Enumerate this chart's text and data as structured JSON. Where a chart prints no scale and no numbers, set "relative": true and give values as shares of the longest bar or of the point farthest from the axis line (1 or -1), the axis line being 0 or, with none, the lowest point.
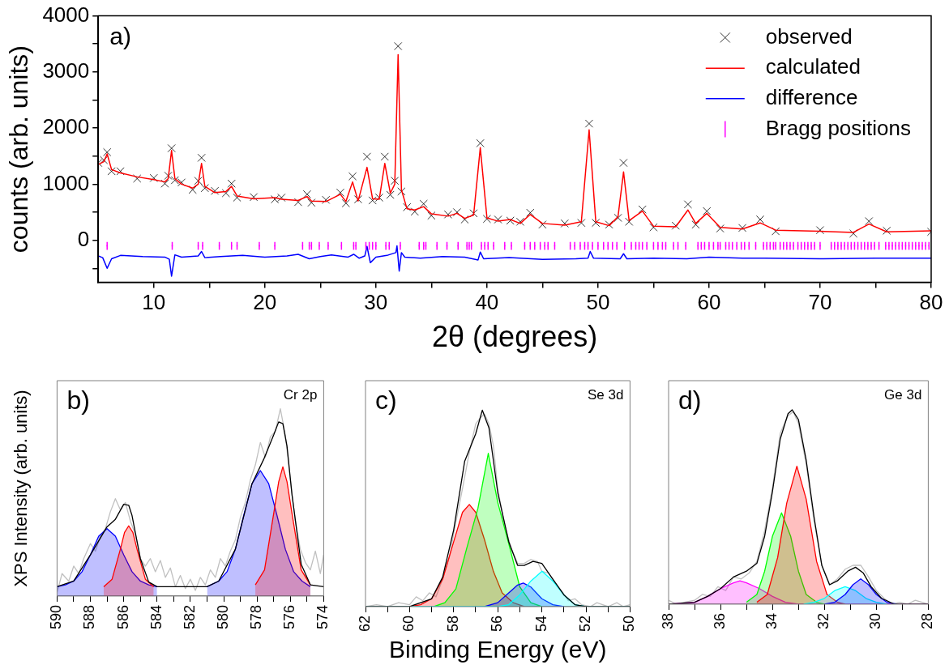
{
  "chart_data": [
    {
      "type": "line",
      "xlabel": "2θ (degrees)",
      "ylabel": "counts (arb. units)",
      "legend": "top right",
      "annotations": [
        "a)"
      ],
      "xlim": [
        5,
        80
      ],
      "xticks": [
        10,
        {
          "value": 15,
          "label": null
        },
        20,
        {
          "value": 25,
          "label": null
        },
        30,
        {
          "value": 35,
          "label": null
        },
        40,
        {
          "value": 45,
          "label": null
        },
        50,
        {
          "value": 55,
          "label": null
        },
        60,
        {
          "value": 65,
          "label": null
        },
        70,
        {
          "value": 75,
          "label": null
        },
        80
      ],
      "ylim": [
        -750,
        4000
      ],
      "yticks": [
        {
          "value": -500,
          "label": null
        },
        0,
        {
          "value": 500,
          "label": null
        },
        1000,
        {
          "value": 1500,
          "label": null
        },
        2000,
        {
          "value": 2500,
          "label": null
        },
        3000,
        {
          "value": 3500,
          "label": null
        },
        4000
      ],
      "x": [
        5,
        5.5,
        5.8,
        6.2,
        7,
        8.5,
        10,
        11,
        11.3,
        11.6,
        11.9,
        12.5,
        13.5,
        14.0,
        14.3,
        14.6,
        15.5,
        16.5,
        17.0,
        17.5,
        19,
        20.9,
        21.5,
        23,
        23.8,
        24.2,
        25.5,
        26.8,
        27.3,
        27.9,
        28.4,
        29.2,
        29.7,
        30.3,
        30.8,
        31.3,
        31.7,
        32.0,
        32.3,
        32.8,
        33.5,
        34.3,
        35,
        36.5,
        37.3,
        38,
        38.8,
        39.4,
        40,
        41,
        42.1,
        43,
        43.9,
        45,
        47,
        48.5,
        49.2,
        49.8,
        51,
        51.8,
        52.3,
        52.8,
        54.0,
        55,
        57,
        58.1,
        58.8,
        59.8,
        61,
        63,
        64.6,
        66,
        70,
        73,
        74.4,
        76,
        80
      ],
      "series": [
        {
          "name": "observed",
          "type": "scatter",
          "marker": "cross",
          "color": "#000000",
          "values": [
            1380,
            1430,
            1570,
            1230,
            1230,
            1100,
            1110,
            1010,
            1150,
            1640,
            1070,
            1030,
            900,
            1060,
            1470,
            930,
            880,
            840,
            1010,
            760,
            770,
            730,
            760,
            680,
            820,
            670,
            720,
            850,
            660,
            1140,
            730,
            1490,
            710,
            760,
            1490,
            810,
            1060,
            3460,
            870,
            590,
            510,
            650,
            440,
            460,
            500,
            370,
            480,
            1730,
            380,
            370,
            350,
            330,
            490,
            280,
            300,
            310,
            2080,
            310,
            280,
            400,
            1380,
            330,
            550,
            230,
            260,
            640,
            280,
            520,
            210,
            220,
            370,
            160,
            180,
            120,
            340,
            170,
            150
          ]
        },
        {
          "name": "calculated",
          "type": "line",
          "color": "#ff0000",
          "values": [
            1350,
            1400,
            1540,
            1260,
            1200,
            1130,
            1080,
            1040,
            1100,
            1600,
            1100,
            1000,
            930,
            1000,
            1370,
            960,
            850,
            870,
            960,
            790,
            740,
            760,
            730,
            710,
            780,
            700,
            690,
            820,
            690,
            1040,
            700,
            1300,
            740,
            730,
            1370,
            840,
            1000,
            3310,
            900,
            560,
            540,
            600,
            470,
            430,
            480,
            390,
            450,
            1650,
            400,
            340,
            370,
            300,
            460,
            300,
            270,
            330,
            1970,
            330,
            260,
            420,
            1220,
            350,
            520,
            250,
            240,
            540,
            300,
            480,
            230,
            200,
            310,
            180,
            160,
            140,
            290,
            150,
            170
          ]
        },
        {
          "name": "difference",
          "type": "line",
          "color": "#0000ff",
          "x": [
            5,
            5.4,
            5.8,
            6.2,
            7,
            9,
            11,
            11.4,
            11.6,
            11.9,
            12.5,
            14,
            14.3,
            14.6,
            16,
            18,
            20,
            22,
            23,
            24,
            25,
            26,
            27.5,
            28,
            28.5,
            29,
            29.2,
            29.5,
            30,
            31,
            31.8,
            31.9,
            32.1,
            32.3,
            32.6,
            34,
            36,
            38,
            39.2,
            39.4,
            39.7,
            42,
            45,
            48,
            49.1,
            49.3,
            49.6,
            52,
            52.3,
            52.6,
            55,
            58,
            60,
            63,
            65,
            70,
            75,
            80
          ],
          "values": [
            -280,
            -310,
            -500,
            -330,
            -270,
            -290,
            -300,
            -340,
            -640,
            -260,
            -300,
            -280,
            -200,
            -310,
            -290,
            -270,
            -300,
            -280,
            -250,
            -330,
            -290,
            -260,
            -300,
            -250,
            -320,
            -280,
            -110,
            -400,
            -300,
            -270,
            -220,
            -100,
            -550,
            -220,
            -300,
            -320,
            -290,
            -300,
            -350,
            -210,
            -330,
            -310,
            -340,
            -330,
            -320,
            -200,
            -320,
            -330,
            -240,
            -330,
            -320,
            -330,
            -300,
            -320,
            -320,
            -330,
            -320,
            -320
          ]
        },
        {
          "name": "Bragg positions",
          "type": "scatter",
          "marker": "square",
          "color": "#ff00ff",
          "errors": [
            70,
            70,
            70,
            70,
            70,
            70,
            70,
            70,
            70,
            70,
            70,
            70,
            70,
            70,
            70,
            70,
            70,
            70,
            70,
            70,
            70,
            70,
            70,
            70,
            70,
            70,
            70,
            70,
            70,
            70,
            70,
            70,
            70,
            70,
            70,
            70,
            70,
            70,
            70,
            70,
            70,
            70,
            70,
            70,
            70,
            70,
            70,
            70,
            70,
            70,
            70,
            70,
            70,
            70,
            70,
            70,
            70,
            70,
            70,
            70,
            70,
            70,
            70,
            70,
            70,
            70,
            70,
            70,
            70,
            70,
            70,
            70,
            70,
            70,
            70,
            70,
            70,
            70,
            70,
            70,
            70,
            70,
            70,
            70,
            70,
            70,
            70,
            70,
            70,
            70,
            70,
            70,
            70,
            70,
            70,
            70,
            70,
            70,
            70,
            70,
            70,
            70,
            70,
            70,
            70,
            70,
            70,
            70,
            70,
            70,
            70,
            70,
            70,
            70,
            70,
            70,
            70,
            70,
            70,
            70,
            70,
            70,
            70,
            70,
            70,
            70,
            70,
            70,
            70,
            70,
            70
          ],
          "x": [
            5.8,
            11.66,
            14.0,
            14.4,
            15.9,
            17.0,
            17.5,
            19.5,
            20.9,
            23.4,
            24.0,
            24.2,
            24.9,
            25.7,
            26.9,
            28.0,
            28.2,
            29.1,
            29.4,
            29.7,
            30.0,
            30.9,
            31.2,
            32.2,
            33.9,
            34.3,
            34.5,
            35.5,
            36.4,
            37.4,
            38.2,
            38.4,
            38.6,
            39.5,
            39.8,
            40.1,
            40.6,
            41.6,
            42.2,
            43.4,
            43.9,
            44.3,
            44.8,
            45.2,
            45.5,
            46.1,
            47.5,
            47.9,
            48.4,
            48.8,
            49.1,
            49.5,
            50.0,
            50.5,
            50.9,
            51.3,
            51.7,
            52.4,
            53.0,
            53.4,
            53.7,
            54.0,
            54.4,
            55.0,
            55.4,
            55.8,
            56.1,
            56.8,
            57.2,
            57.9,
            59.0,
            59.3,
            59.6,
            60.0,
            60.4,
            60.8,
            61.0,
            61.5,
            61.8,
            62.1,
            62.5,
            62.9,
            63.2,
            63.6,
            64.2,
            64.9,
            65.2,
            65.5,
            65.8,
            66.0,
            66.4,
            66.7,
            67.0,
            67.3,
            67.6,
            68.0,
            68.3,
            68.6,
            68.9,
            69.2,
            69.5,
            70.0,
            71.0,
            71.3,
            71.6,
            71.9,
            72.2,
            72.5,
            72.8,
            73.1,
            73.4,
            73.7,
            74.0,
            74.3,
            74.6,
            74.9,
            75.3,
            75.9,
            76.2,
            76.5,
            76.8,
            77.1,
            77.4,
            77.7,
            78.0,
            78.3,
            78.6,
            78.9,
            79.2,
            79.5,
            79.8
          ],
          "values": [
            -100,
            -100,
            -100,
            -100,
            -100,
            -100,
            -100,
            -100,
            -100,
            -100,
            -100,
            -100,
            -100,
            -100,
            -100,
            -100,
            -100,
            -100,
            -100,
            -100,
            -100,
            -100,
            -100,
            -100,
            -100,
            -100,
            -100,
            -100,
            -100,
            -100,
            -100,
            -100,
            -100,
            -100,
            -100,
            -100,
            -100,
            -100,
            -100,
            -100,
            -100,
            -100,
            -100,
            -100,
            -100,
            -100,
            -100,
            -100,
            -100,
            -100,
            -100,
            -100,
            -100,
            -100,
            -100,
            -100,
            -100,
            -100,
            -100,
            -100,
            -100,
            -100,
            -100,
            -100,
            -100,
            -100,
            -100,
            -100,
            -100,
            -100,
            -100,
            -100,
            -100,
            -100,
            -100,
            -100,
            -100,
            -100,
            -100,
            -100,
            -100,
            -100,
            -100,
            -100,
            -100,
            -100,
            -100,
            -100,
            -100,
            -100,
            -100,
            -100,
            -100,
            -100,
            -100,
            -100,
            -100,
            -100,
            -100,
            -100,
            -100,
            -100,
            -100,
            -100,
            -100,
            -100,
            -100,
            -100,
            -100,
            -100,
            -100,
            -100,
            -100,
            -100,
            -100,
            -100,
            -100,
            -100,
            -100,
            -100,
            -100,
            -100,
            -100,
            -100,
            -100,
            -100,
            -100,
            -100,
            -100,
            -100,
            -100
          ]
        }
      ]
    },
    {
      "type": "line",
      "relative": true,
      "tick_labels": "x",
      "ylabel": "XPS Intensity (arb. units)",
      "annotations": [
        "b)",
        "Cr 2p"
      ],
      "xlim": [
        590,
        574
      ],
      "xticks": [
        590,
        {
          "value": 589,
          "label": null
        },
        588,
        {
          "value": 587,
          "label": null
        },
        586,
        {
          "value": 585,
          "label": null
        },
        584,
        {
          "value": 583,
          "label": null
        },
        582,
        {
          "value": 581,
          "label": null
        },
        580,
        {
          "value": 579,
          "label": null
        },
        578,
        {
          "value": 577,
          "label": null
        },
        576,
        {
          "value": 575,
          "label": null
        },
        574
      ],
      "series": [
        {
          "type": "line",
          "color": "#c0c0c0",
          "x": [
            590,
            589.7,
            589.3,
            589,
            588.7,
            588.4,
            588,
            587.7,
            587.4,
            587.1,
            586.8,
            586.5,
            586.2,
            585.9,
            585.6,
            585.3,
            585,
            584.7,
            584.4,
            584.1,
            583.8,
            583.5,
            583.2,
            582.9,
            582.6,
            582.3,
            582,
            581.7,
            581.4,
            581.1,
            580.8,
            580.5,
            580.2,
            579.9,
            579.6,
            579.3,
            579,
            578.7,
            578.4,
            578.1,
            577.8,
            577.5,
            577.2,
            576.9,
            576.6,
            576.3,
            576,
            575.7,
            575.4,
            575.1,
            574.8,
            574.5,
            574.2,
            574
          ],
          "values": [
            0.02,
            0.12,
            0.08,
            0.16,
            0.12,
            0.2,
            0.28,
            0.24,
            0.32,
            0.36,
            0.45,
            0.52,
            0.46,
            0.5,
            0.4,
            0.33,
            0.2,
            0.16,
            0.2,
            0.13,
            0.19,
            0.1,
            0.15,
            0.05,
            0.11,
            0.04,
            0.09,
            0.03,
            0.1,
            0.06,
            0.14,
            0.1,
            0.2,
            0.16,
            0.24,
            0.3,
            0.42,
            0.5,
            0.62,
            0.7,
            0.82,
            0.74,
            0.85,
            0.88,
            1.0,
            0.86,
            0.62,
            0.4,
            0.25,
            0.18,
            0.14,
            0.24,
            0.12,
            0.22
          ]
        },
        {
          "type": "area",
          "color": "#0000ff",
          "x": [
            590,
            589.5,
            589,
            588.5,
            588,
            587.5,
            587,
            586.5,
            586,
            585.5,
            585,
            584.5,
            584
          ],
          "values": [
            0.05,
            0.06,
            0.08,
            0.13,
            0.22,
            0.32,
            0.36,
            0.32,
            0.22,
            0.13,
            0.08,
            0.06,
            0.05
          ]
        },
        {
          "type": "area",
          "color": "#ff0000",
          "x": [
            587.2,
            586.7,
            586.2,
            585.95,
            585.7,
            585.45,
            585.2,
            584.7,
            584.2
          ],
          "values": [
            0.05,
            0.09,
            0.25,
            0.34,
            0.375,
            0.34,
            0.25,
            0.09,
            0.05
          ]
        },
        {
          "type": "area",
          "color": "#0000ff",
          "x": [
            581,
            580.3,
            579.8,
            579.3,
            578.8,
            578.3,
            577.8,
            577.3,
            576.8,
            576.3,
            575.8,
            575.3,
            574.8
          ],
          "values": [
            0.05,
            0.08,
            0.13,
            0.25,
            0.43,
            0.6,
            0.67,
            0.6,
            0.43,
            0.25,
            0.13,
            0.08,
            0.05
          ]
        },
        {
          "type": "area",
          "color": "#ff0000",
          "x": [
            578.1,
            577.55,
            577,
            576.7,
            576.45,
            576.2,
            575.9,
            575.35,
            574.8
          ],
          "values": [
            0.06,
            0.14,
            0.44,
            0.61,
            0.69,
            0.61,
            0.44,
            0.14,
            0.06
          ]
        },
        {
          "type": "line",
          "color": "#000000",
          "x": [
            590,
            589,
            588,
            587,
            586.5,
            586,
            585.7,
            585.5,
            585,
            584.5,
            584,
            581,
            580.3,
            579.3,
            578.3,
            577.6,
            577,
            576.7,
            576.45,
            576.2,
            575.9,
            575.35,
            574.8,
            574
          ],
          "values": [
            0.05,
            0.08,
            0.22,
            0.37,
            0.41,
            0.49,
            0.485,
            0.43,
            0.2,
            0.075,
            0.05,
            0.05,
            0.08,
            0.25,
            0.6,
            0.73,
            0.86,
            0.93,
            0.92,
            0.8,
            0.54,
            0.17,
            0.06,
            0.05
          ]
        }
      ]
    },
    {
      "type": "line",
      "relative": true,
      "tick_labels": "x",
      "xlabel": "Binding Energy (eV)",
      "annotations": [
        "c)",
        "Se 3d"
      ],
      "xlim": [
        62,
        50
      ],
      "xticks": [
        62,
        {
          "value": 61,
          "label": null
        },
        60,
        {
          "value": 59,
          "label": null
        },
        58,
        {
          "value": 57,
          "label": null
        },
        56,
        {
          "value": 55,
          "label": null
        },
        54,
        {
          "value": 53,
          "label": null
        },
        52,
        {
          "value": 51,
          "label": null
        },
        50
      ],
      "series": [
        {
          "type": "line",
          "color": "#c0c0c0",
          "x": [
            62,
            61.5,
            61,
            60.5,
            60,
            59.7,
            59.4,
            59.1,
            58.8,
            58.5,
            58.2,
            57.9,
            57.6,
            57.3,
            57,
            56.8,
            56.6,
            56.4,
            56.2,
            56,
            55.7,
            55.4,
            55.1,
            54.8,
            54.5,
            54.2,
            54,
            53.7,
            53.4,
            53.1,
            52.8,
            52.5,
            52.2,
            51.8,
            51.5,
            51,
            50.6,
            50.3,
            50
          ],
          "values": [
            0,
            0.01,
            0,
            0.02,
            0.01,
            0.05,
            0.03,
            0.07,
            0.05,
            0.14,
            0.25,
            0.43,
            0.6,
            0.78,
            0.93,
            0.96,
            0.98,
            0.93,
            0.82,
            0.6,
            0.42,
            0.3,
            0.22,
            0.22,
            0.24,
            0.23,
            0.18,
            0.17,
            0.12,
            0.08,
            0.03,
            0.04,
            0.01,
            0,
            0.02,
            0,
            0.02,
            0,
            0.01
          ]
        },
        {
          "type": "area",
          "color": "#ff0000",
          "x": [
            60,
            59.5,
            59,
            58.5,
            58,
            57.6,
            57.29,
            57,
            56.6,
            56.2,
            55.8,
            55.3,
            54.8
          ],
          "values": [
            0,
            0.01,
            0.04,
            0.14,
            0.33,
            0.48,
            0.52,
            0.48,
            0.34,
            0.18,
            0.07,
            0.02,
            0
          ]
        },
        {
          "type": "area",
          "color": "#00ff00",
          "x": [
            58.9,
            58.4,
            57.9,
            57.4,
            56.9,
            56.43,
            56,
            55.5,
            55,
            54.5,
            54
          ],
          "values": [
            0,
            0.02,
            0.09,
            0.3,
            0.5,
            0.78,
            0.53,
            0.32,
            0.1,
            0.02,
            0
          ]
        },
        {
          "type": "area",
          "color": "#0000ff",
          "x": [
            56.6,
            56,
            55.5,
            55.1,
            54.84,
            54.5,
            54,
            53.5,
            53
          ],
          "values": [
            0,
            0.02,
            0.07,
            0.11,
            0.12,
            0.1,
            0.04,
            0.01,
            0
          ]
        },
        {
          "type": "area",
          "color": "#00ffff",
          "x": [
            62,
            56,
            55.5,
            55,
            54.5,
            53.99,
            53.5,
            53,
            52.5,
            52,
            50
          ],
          "values": [
            0,
            0,
            0.01,
            0.06,
            0.13,
            0.18,
            0.13,
            0.06,
            0.01,
            0,
            0
          ]
        },
        {
          "type": "line",
          "color": "#000000",
          "x": [
            62,
            60,
            59,
            58.5,
            58,
            57.5,
            57,
            56.7,
            56.4,
            56,
            55.5,
            55.1,
            54.8,
            54.4,
            54,
            53.5,
            53,
            52.5,
            52,
            50
          ],
          "values": [
            0,
            0,
            0.04,
            0.15,
            0.39,
            0.74,
            0.88,
            1,
            0.91,
            0.58,
            0.33,
            0.21,
            0.21,
            0.23,
            0.22,
            0.14,
            0.06,
            0.01,
            0,
            0
          ]
        }
      ]
    },
    {
      "type": "line",
      "relative": true,
      "tick_labels": "x",
      "annotations": [
        "d)",
        "Ge 3d"
      ],
      "xlim": [
        38,
        28
      ],
      "xticks": [
        38,
        {
          "value": 37,
          "label": null
        },
        36,
        {
          "value": 35,
          "label": null
        },
        34,
        {
          "value": 33,
          "label": null
        },
        32,
        {
          "value": 31,
          "label": null
        },
        30,
        {
          "value": 29,
          "label": null
        },
        28
      ],
      "series": [
        {
          "type": "line",
          "color": "#c0c0c0",
          "x": [
            38,
            37.7,
            37.4,
            37,
            36.7,
            36.4,
            36.1,
            35.8,
            35.5,
            35.2,
            34.9,
            34.6,
            34.3,
            34,
            33.7,
            33.4,
            33.2,
            33,
            32.7,
            32.4,
            32.1,
            31.8,
            31.5,
            31.2,
            30.9,
            30.6,
            30.3,
            30,
            29.7,
            29.4,
            29.1,
            28.8,
            28.5,
            28
          ],
          "values": [
            0.02,
            0,
            0.01,
            0.02,
            0.05,
            0.04,
            0.09,
            0.07,
            0.14,
            0.13,
            0.16,
            0.22,
            0.38,
            0.6,
            0.88,
            0.97,
            0.99,
            0.93,
            0.72,
            0.43,
            0.2,
            0.1,
            0.13,
            0.18,
            0.2,
            0.2,
            0.14,
            0.07,
            0.03,
            0,
            0.01,
            0,
            0.02,
            0
          ]
        },
        {
          "type": "area",
          "color": "#ff00ff",
          "x": [
            38,
            37,
            36.5,
            36,
            35.5,
            35.25,
            35,
            34.5,
            34,
            33.5,
            33,
            32.5,
            28
          ],
          "values": [
            0,
            0.01,
            0.04,
            0.08,
            0.11,
            0.12,
            0.11,
            0.08,
            0.04,
            0.01,
            0,
            0,
            0
          ]
        },
        {
          "type": "area",
          "color": "#00ff00",
          "x": [
            35,
            34.6,
            34.3,
            34,
            33.65,
            33.3,
            33,
            32.7,
            32.3,
            32
          ],
          "values": [
            0.01,
            0.05,
            0.17,
            0.35,
            0.47,
            0.35,
            0.17,
            0.05,
            0.01,
            0
          ]
        },
        {
          "type": "area",
          "color": "#ff0000",
          "x": [
            34.6,
            34.2,
            33.8,
            33.45,
            33.06,
            32.7,
            32.3,
            31.9,
            31.5,
            31.2
          ],
          "values": [
            0.01,
            0.05,
            0.24,
            0.52,
            0.71,
            0.54,
            0.22,
            0.05,
            0.01,
            0
          ]
        },
        {
          "type": "area",
          "color": "#00ffff",
          "x": [
            32.8,
            32.4,
            32,
            31.6,
            31.2,
            30.8,
            30.4,
            30,
            29.6
          ],
          "values": [
            0,
            0.01,
            0.03,
            0.07,
            0.09,
            0.07,
            0.03,
            0.01,
            0
          ]
        },
        {
          "type": "area",
          "color": "#0000ff",
          "x": [
            32,
            31.6,
            31.2,
            30.9,
            30.6,
            30.3,
            30,
            29.6,
            29.2
          ],
          "values": [
            0,
            0.01,
            0.05,
            0.1,
            0.13,
            0.1,
            0.05,
            0.01,
            0
          ]
        },
        {
          "type": "line",
          "color": "#000000",
          "x": [
            38,
            37,
            36.5,
            36,
            35.5,
            35,
            34.6,
            34.3,
            34,
            33.7,
            33.4,
            33.24,
            33,
            32.7,
            32.4,
            32.1,
            31.8,
            31.5,
            31.1,
            30.8,
            30.5,
            30.2,
            29.8,
            29.3,
            28
          ],
          "values": [
            0,
            0.01,
            0.04,
            0.08,
            0.14,
            0.17,
            0.21,
            0.35,
            0.58,
            0.85,
            0.98,
            1,
            0.95,
            0.74,
            0.45,
            0.2,
            0.1,
            0.12,
            0.17,
            0.19,
            0.16,
            0.09,
            0.03,
            0,
            0
          ]
        }
      ]
    }
  ]
}
